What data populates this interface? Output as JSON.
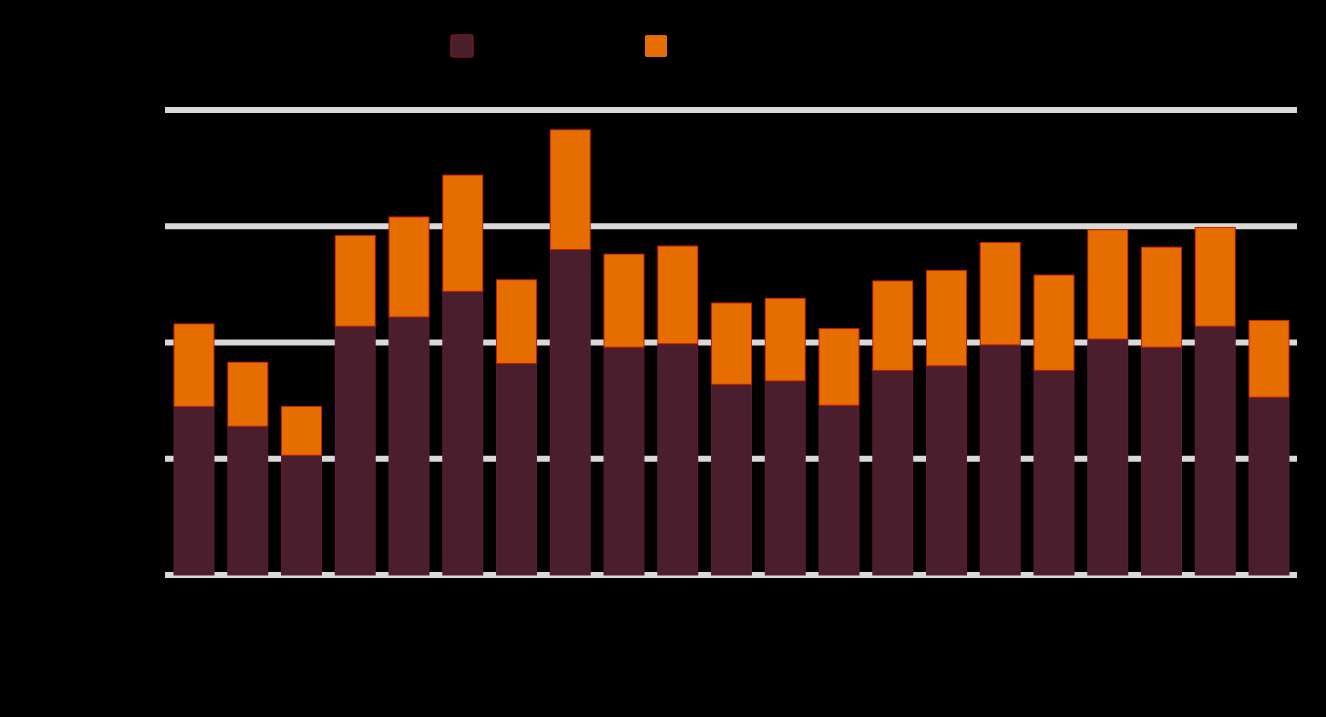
{
  "chart_data": {
    "type": "bar",
    "stacked": true,
    "categories": [
      "",
      "",
      "",
      "",
      "",
      "",
      "",
      "",
      "",
      "",
      "",
      "",
      "",
      "",
      "",
      "",
      "",
      "",
      "",
      "",
      ""
    ],
    "series": [
      {
        "name": "",
        "color": "#4a1e2c",
        "values": [
          1.45,
          1.28,
          1.03,
          2.14,
          2.22,
          2.44,
          1.82,
          2.8,
          1.96,
          1.99,
          1.64,
          1.67,
          1.46,
          1.76,
          1.8,
          1.98,
          1.76,
          2.03,
          1.96,
          2.14,
          1.53
        ]
      },
      {
        "name": "",
        "color": "#e66e00",
        "values": [
          0.71,
          0.55,
          0.42,
          0.78,
          0.86,
          1.0,
          0.72,
          1.03,
          0.8,
          0.84,
          0.7,
          0.71,
          0.66,
          0.77,
          0.82,
          0.88,
          0.82,
          0.94,
          0.86,
          0.85,
          0.66
        ]
      }
    ],
    "ylim": [
      0,
      4
    ],
    "yticks": [
      0,
      1,
      2,
      3,
      4
    ],
    "grid": true,
    "legend": "top",
    "title": "",
    "xlabel": "",
    "ylabel": ""
  }
}
